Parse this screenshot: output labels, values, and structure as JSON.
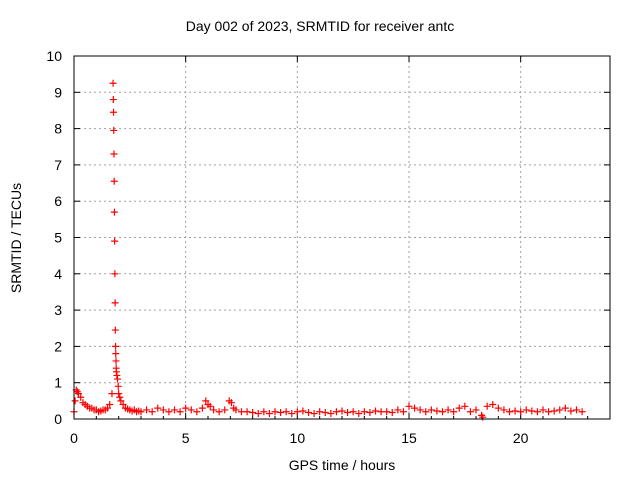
{
  "chart_data": {
    "type": "scatter",
    "title": "Day 002 of 2023, SRMTID for receiver antc",
    "xlabel": "GPS time / hours",
    "ylabel": "SRMTID / TECUs",
    "xlim": [
      0,
      24
    ],
    "ylim": [
      0,
      10
    ],
    "xticks": [
      0,
      5,
      10,
      15,
      20
    ],
    "yticks": [
      0,
      1,
      2,
      3,
      4,
      5,
      6,
      7,
      8,
      9,
      10
    ],
    "grid": true,
    "marker": "+",
    "color": "#ff0000",
    "series": [
      {
        "name": "SRMTID",
        "x": [
          0.0,
          0.05,
          0.1,
          0.15,
          0.2,
          0.3,
          0.4,
          0.5,
          0.6,
          0.7,
          0.8,
          0.9,
          1.0,
          1.1,
          1.2,
          1.3,
          1.4,
          1.5,
          1.6,
          1.7,
          1.75,
          1.76,
          1.77,
          1.78,
          1.79,
          1.8,
          1.81,
          1.82,
          1.83,
          1.84,
          1.85,
          1.86,
          1.87,
          1.88,
          1.89,
          1.9,
          1.92,
          1.95,
          1.98,
          2.0,
          2.05,
          2.1,
          2.2,
          2.3,
          2.4,
          2.5,
          2.6,
          2.7,
          2.8,
          2.9,
          3.0,
          3.25,
          3.5,
          3.75,
          4.0,
          4.25,
          4.5,
          4.75,
          5.0,
          5.25,
          5.5,
          5.75,
          5.9,
          6.0,
          6.1,
          6.25,
          6.5,
          6.75,
          6.95,
          7.05,
          7.15,
          7.25,
          7.5,
          7.75,
          8.0,
          8.25,
          8.5,
          8.75,
          9.0,
          9.25,
          9.5,
          9.75,
          10.0,
          10.25,
          10.5,
          10.75,
          11.0,
          11.25,
          11.5,
          11.75,
          12.0,
          12.25,
          12.5,
          12.75,
          13.0,
          13.25,
          13.5,
          13.75,
          14.0,
          14.25,
          14.5,
          14.75,
          15.0,
          15.25,
          15.5,
          15.75,
          16.0,
          16.25,
          16.5,
          16.75,
          17.0,
          17.25,
          17.5,
          17.75,
          18.0,
          18.25,
          18.3,
          18.5,
          18.75,
          19.0,
          19.25,
          19.5,
          19.75,
          20.0,
          20.25,
          20.5,
          20.75,
          21.0,
          21.25,
          21.5,
          21.75,
          22.0,
          22.25,
          22.5,
          22.75
        ],
        "y": [
          0.2,
          0.5,
          0.8,
          0.75,
          0.7,
          0.6,
          0.45,
          0.4,
          0.35,
          0.3,
          0.3,
          0.25,
          0.25,
          0.2,
          0.22,
          0.25,
          0.25,
          0.3,
          0.4,
          0.7,
          9.25,
          8.8,
          8.45,
          7.95,
          7.3,
          6.55,
          5.7,
          4.9,
          4.0,
          3.2,
          2.45,
          2.0,
          1.8,
          1.6,
          1.4,
          1.3,
          1.2,
          1.1,
          0.9,
          0.7,
          0.6,
          0.5,
          0.4,
          0.3,
          0.28,
          0.25,
          0.22,
          0.25,
          0.2,
          0.22,
          0.2,
          0.25,
          0.2,
          0.3,
          0.25,
          0.2,
          0.25,
          0.2,
          0.3,
          0.25,
          0.2,
          0.3,
          0.5,
          0.4,
          0.35,
          0.25,
          0.2,
          0.25,
          0.5,
          0.45,
          0.3,
          0.25,
          0.2,
          0.2,
          0.18,
          0.15,
          0.2,
          0.15,
          0.2,
          0.18,
          0.2,
          0.15,
          0.2,
          0.22,
          0.18,
          0.15,
          0.2,
          0.18,
          0.15,
          0.2,
          0.22,
          0.18,
          0.2,
          0.15,
          0.2,
          0.18,
          0.22,
          0.2,
          0.2,
          0.18,
          0.25,
          0.2,
          0.35,
          0.3,
          0.25,
          0.2,
          0.25,
          0.22,
          0.2,
          0.25,
          0.2,
          0.3,
          0.35,
          0.2,
          0.25,
          0.1,
          0.05,
          0.35,
          0.4,
          0.3,
          0.25,
          0.2,
          0.22,
          0.2,
          0.25,
          0.22,
          0.2,
          0.25,
          0.2,
          0.22,
          0.25,
          0.3,
          0.22,
          0.25,
          0.2
        ]
      }
    ]
  }
}
